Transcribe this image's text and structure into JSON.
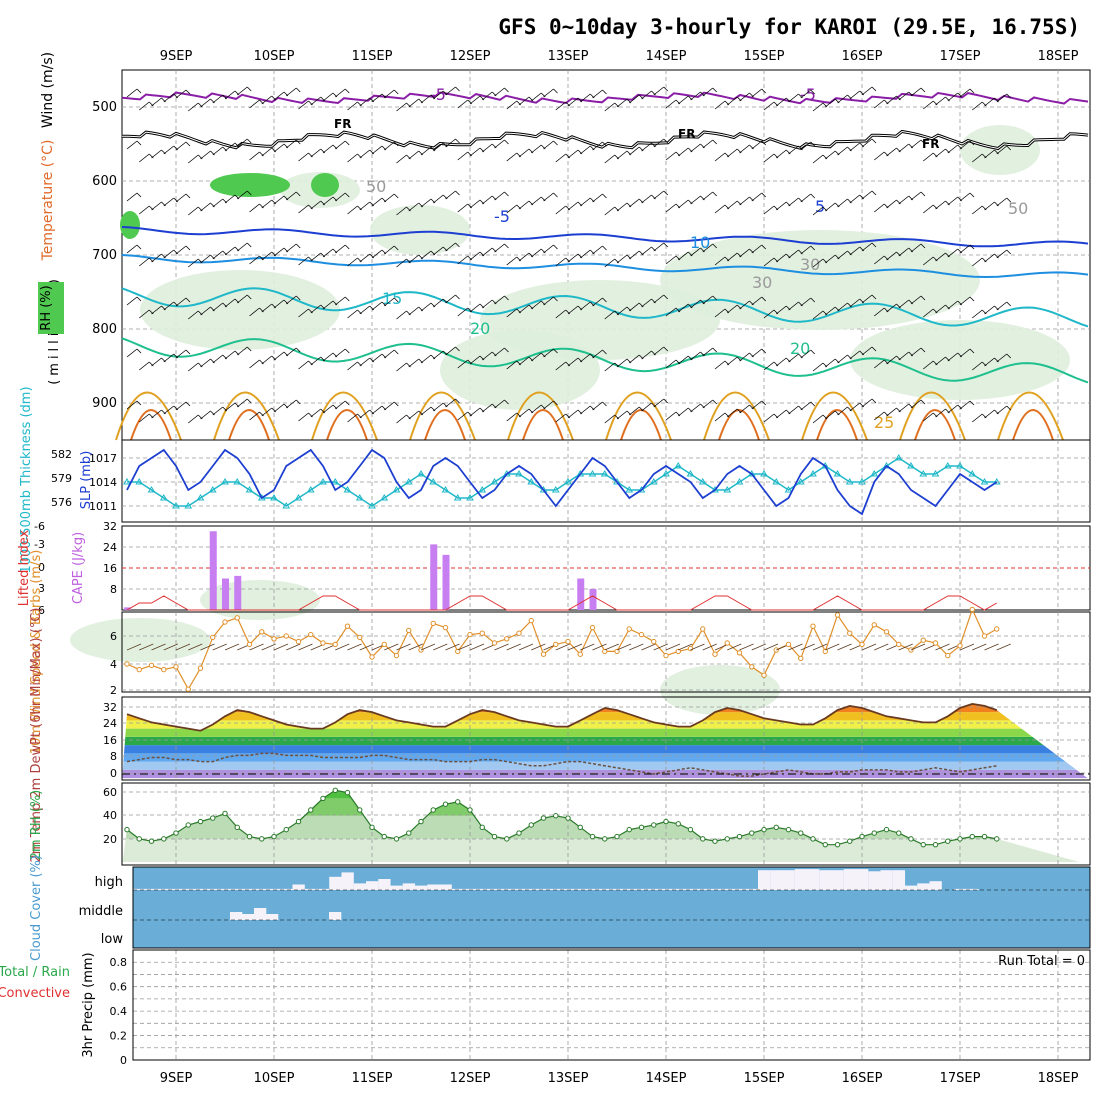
{
  "chart_data": {
    "type": "meteogram",
    "title": "GFS 0~10day 3-hourly for KAROI (29.5E, 16.75S)",
    "dates": [
      "9SEP",
      "10SEP",
      "11SEP",
      "12SEP",
      "13SEP",
      "14SEP",
      "15SEP",
      "16SEP",
      "17SEP",
      "18SEP"
    ],
    "panels": {
      "upper": {
        "ylabel": "(millibars)",
        "legend": [
          "RH (%)",
          "Temperature (°C)",
          "Wind (m/s)"
        ],
        "yticks": [
          500,
          600,
          700,
          800,
          900
        ],
        "ylim": [
          450,
          950
        ],
        "contour_labels": [
          "-5",
          "-5",
          "FR",
          "FR",
          "FR",
          "-5",
          "5",
          "10",
          "15",
          "20",
          "20",
          "25",
          "30",
          "30",
          "50",
          "50"
        ]
      },
      "thickness": {
        "left_label": "1000-500mb Thickness (dm)",
        "right_label": "SLP (mb)",
        "left_ticks": [
          "582",
          "579",
          "576"
        ],
        "right_ticks": [
          "1017",
          "1014",
          "1011"
        ],
        "slp": [
          1015,
          1014,
          1013,
          1016,
          1018,
          1017,
          1015,
          1012,
          1013,
          1016,
          1017,
          1018,
          1016,
          1013,
          1014,
          1016,
          1018,
          1017,
          1015,
          1012,
          1013,
          1016,
          1017,
          1018,
          1016,
          1013,
          1014,
          1016,
          1018,
          1017,
          1014,
          1012,
          1013,
          1016,
          1017,
          1016,
          1014,
          1012,
          1013,
          1015,
          1016,
          1015,
          1013,
          1011,
          1013,
          1015,
          1017,
          1016,
          1014,
          1012,
          1013,
          1015,
          1016,
          1015,
          1014,
          1012,
          1013,
          1015,
          1016,
          1015,
          1013,
          1011,
          1012,
          1015,
          1017,
          1016,
          1013,
          1011,
          1010,
          1014,
          1016,
          1015,
          1013,
          1012,
          1011,
          1013,
          1015,
          1014,
          1013,
          1014
        ],
        "thickness": [
          579,
          578,
          578,
          577,
          576,
          576,
          577,
          578,
          579,
          579,
          578,
          577,
          576,
          576,
          577,
          578,
          579,
          579,
          578,
          577,
          577,
          576,
          577,
          578,
          579,
          579,
          578,
          577,
          576,
          577,
          578,
          579,
          580,
          579,
          578,
          577,
          577,
          578,
          579,
          580,
          580,
          579,
          578,
          578,
          579,
          580,
          580,
          580,
          579,
          578,
          578,
          579,
          580,
          581,
          580,
          579,
          578,
          578,
          579,
          580,
          580,
          579,
          578,
          579,
          580,
          581,
          580,
          579,
          579,
          580,
          581,
          582,
          581,
          580,
          580,
          581,
          581,
          580,
          579,
          579
        ]
      },
      "instability": {
        "left_label": "Lifted Index",
        "right_label": "CAPE (J/kg)",
        "li_ticks": [
          "-6",
          "-3",
          "0",
          "3",
          "6"
        ],
        "cape_ticks": [
          "32",
          "24",
          "16",
          "8"
        ],
        "cape": [
          26,
          0,
          0,
          0,
          0,
          0,
          0,
          0,
          1,
          0,
          0,
          0,
          0,
          0,
          0,
          30,
          12,
          13,
          0,
          0,
          0,
          0,
          0,
          0,
          0,
          0,
          0,
          0,
          0,
          0,
          0,
          0,
          0,
          25,
          21,
          0,
          0,
          0,
          0,
          0,
          0,
          0,
          0,
          0,
          0,
          12,
          8,
          0,
          0,
          0,
          0,
          0,
          0,
          0,
          0,
          0,
          0,
          0,
          0,
          0,
          0,
          0,
          0,
          0,
          0,
          0,
          0,
          0,
          0,
          0,
          0,
          0,
          0,
          0,
          0,
          0,
          0,
          0,
          0,
          0
        ],
        "lifted_index": [
          5,
          6,
          6,
          6,
          6,
          6,
          6,
          6,
          6,
          5,
          5,
          4,
          5,
          6,
          6,
          6,
          6,
          6,
          6,
          6,
          6,
          6,
          6,
          5,
          4,
          4,
          5,
          6,
          6,
          6,
          6,
          6,
          6,
          6,
          6,
          5,
          4,
          4,
          5,
          6,
          6,
          6,
          6,
          6,
          6,
          5,
          4,
          5,
          6,
          6,
          6,
          6,
          6,
          6,
          6,
          5,
          4,
          4,
          5,
          6,
          6,
          6,
          6,
          6,
          6,
          5,
          4,
          5,
          6,
          6,
          6,
          6,
          6,
          6,
          5,
          4,
          4,
          5,
          6,
          5
        ]
      },
      "wind10m": {
        "ylabel": "10m Wind Speed & Barbs (m/s)",
        "yticks": [
          "6",
          "4",
          "2"
        ],
        "speed": [
          3.9,
          4.1,
          3.7,
          2.4,
          2.6,
          2.8,
          2.9,
          4.7,
          4.0,
          3.6,
          3.9,
          3.6,
          3.8,
          2.2,
          3.7,
          5.9,
          7.0,
          7.3,
          5.4,
          6.3,
          5.8,
          6.0,
          5.6,
          6.1,
          5.5,
          5.4,
          6.7,
          5.9,
          4.5,
          5.4,
          4.6,
          6.4,
          5.0,
          6.9,
          6.6,
          4.9,
          6.1,
          6.2,
          5.5,
          5.8,
          6.2,
          7.1,
          4.7,
          5.4,
          5.6,
          4.7,
          6.6,
          4.9,
          4.9,
          6.5,
          6.1,
          5.6,
          4.6,
          4.9,
          5.1,
          6.5,
          4.7,
          5.5,
          4.8,
          3.8,
          3.2,
          5.0,
          5.4,
          4.4,
          6.7,
          4.9,
          7.5,
          6.2,
          5.4,
          6.8,
          6.3,
          5.4,
          5.0,
          5.7,
          5.5,
          4.6,
          5.3,
          7.9,
          6.0,
          6.5
        ]
      },
      "temperature": {
        "ylabel": "2m Temp 2m DewPt (6hr Min/Max) (°C)",
        "yticks": [
          "32",
          "24",
          "16",
          "8",
          "0"
        ],
        "temp": [
          24,
          23,
          22,
          21,
          21,
          24,
          28,
          30,
          29,
          27,
          25,
          24,
          23,
          22,
          21,
          24,
          28,
          31,
          30,
          28,
          26,
          24,
          23,
          22,
          22,
          25,
          29,
          31,
          30,
          28,
          26,
          25,
          24,
          23,
          23,
          26,
          29,
          31,
          30,
          28,
          26,
          25,
          24,
          23,
          23,
          26,
          29,
          32,
          31,
          29,
          27,
          25,
          24,
          23,
          23,
          26,
          30,
          32,
          31,
          29,
          27,
          26,
          25,
          24,
          24,
          27,
          31,
          33,
          32,
          30,
          28,
          27,
          26,
          25,
          25,
          28,
          32,
          34,
          33,
          31
        ],
        "dewpoint": [
          7,
          7,
          7,
          6,
          6,
          6,
          5,
          5,
          6,
          7,
          8,
          8,
          7,
          7,
          6,
          6,
          8,
          9,
          9,
          10,
          10,
          9,
          9,
          9,
          8,
          8,
          8,
          8,
          9,
          9,
          8,
          7,
          7,
          7,
          6,
          6,
          6,
          7,
          7,
          6,
          5,
          4,
          4,
          5,
          6,
          6,
          5,
          4,
          3,
          2,
          1,
          0,
          1,
          2,
          3,
          2,
          1,
          0,
          -1,
          -1,
          0,
          1,
          2,
          1,
          0,
          0,
          1,
          1,
          2,
          2,
          2,
          1,
          1,
          2,
          3,
          2,
          1,
          2,
          3,
          4
        ]
      },
      "rh2m": {
        "ylabel": "2m RH (%)",
        "yticks": [
          "60",
          "40",
          "20"
        ],
        "rh": [
          23,
          25,
          30,
          35,
          40,
          45,
          47,
          40,
          28,
          20,
          18,
          20,
          25,
          32,
          35,
          38,
          42,
          30,
          22,
          20,
          22,
          28,
          35,
          45,
          55,
          62,
          60,
          45,
          30,
          22,
          20,
          25,
          35,
          45,
          50,
          52,
          45,
          30,
          22,
          20,
          25,
          32,
          38,
          40,
          38,
          30,
          22,
          20,
          22,
          28,
          30,
          32,
          35,
          33,
          28,
          20,
          18,
          20,
          22,
          25,
          28,
          30,
          28,
          25,
          20,
          15,
          15,
          18,
          22,
          25,
          28,
          25,
          20,
          15,
          15,
          18,
          20,
          22,
          22,
          20
        ]
      },
      "cloud": {
        "ylabel": "Cloud Cover (%)",
        "levels": [
          "high",
          "middle",
          "low"
        ],
        "high": [
          5,
          5,
          5,
          10,
          10,
          20,
          10,
          20,
          10,
          5,
          5,
          5,
          5,
          5,
          5,
          5,
          5,
          5,
          5,
          5,
          5,
          5,
          25,
          5,
          5,
          60,
          80,
          30,
          40,
          50,
          20,
          30,
          20,
          25,
          25,
          5,
          5,
          5,
          5,
          5,
          5,
          5,
          5,
          5,
          5,
          5,
          5,
          5,
          5,
          5,
          5,
          5,
          5,
          5,
          5,
          5,
          5,
          5,
          5,
          5,
          90,
          90,
          90,
          95,
          95,
          90,
          90,
          95,
          95,
          85,
          90,
          90,
          20,
          30,
          40,
          0,
          5,
          5,
          0,
          0
        ],
        "middle": [
          0,
          0,
          0,
          0,
          0,
          0,
          0,
          0,
          0,
          0,
          0,
          0,
          0,
          0,
          0,
          0,
          0,
          0,
          0,
          0,
          0,
          0,
          0,
          0,
          0,
          0,
          0,
          0,
          0,
          0,
          0,
          0,
          0,
          0,
          0,
          0,
          0,
          0,
          0,
          0,
          0,
          0,
          0,
          0,
          0,
          0,
          0,
          0,
          0,
          0,
          0,
          0,
          0,
          0,
          0,
          0,
          0,
          0,
          0,
          0,
          0,
          0,
          0,
          0,
          0,
          0,
          0,
          0,
          0,
          0,
          0,
          0,
          0,
          0,
          0,
          0,
          0,
          0,
          0,
          0
        ],
        "middle_blocks": [
          0,
          0,
          0,
          0,
          0,
          0,
          0,
          0,
          0,
          0,
          0,
          0,
          0,
          0,
          0,
          0,
          0,
          0,
          0,
          0,
          0,
          0,
          0,
          0,
          0,
          0,
          0,
          0,
          0,
          0,
          0,
          0,
          0,
          0,
          0,
          0,
          0,
          0,
          0,
          0,
          0,
          0,
          0,
          0,
          0,
          0,
          0,
          0,
          0,
          0,
          0,
          0,
          0,
          0,
          0,
          0,
          0,
          0,
          0,
          0,
          0,
          0,
          0,
          0,
          0,
          0,
          0,
          0,
          0,
          0,
          0,
          0,
          0,
          0,
          0,
          0,
          0,
          0,
          0,
          0
        ]
      },
      "precip": {
        "ylabel": "3hr Precip (mm)",
        "legend": [
          "Total / Rain",
          "Convective"
        ],
        "yticks": [
          "0.8",
          "0.6",
          "0.4",
          "0.2",
          "0"
        ],
        "ylim": [
          0,
          0.9
        ],
        "run_total": "Run Total = 0"
      }
    }
  }
}
